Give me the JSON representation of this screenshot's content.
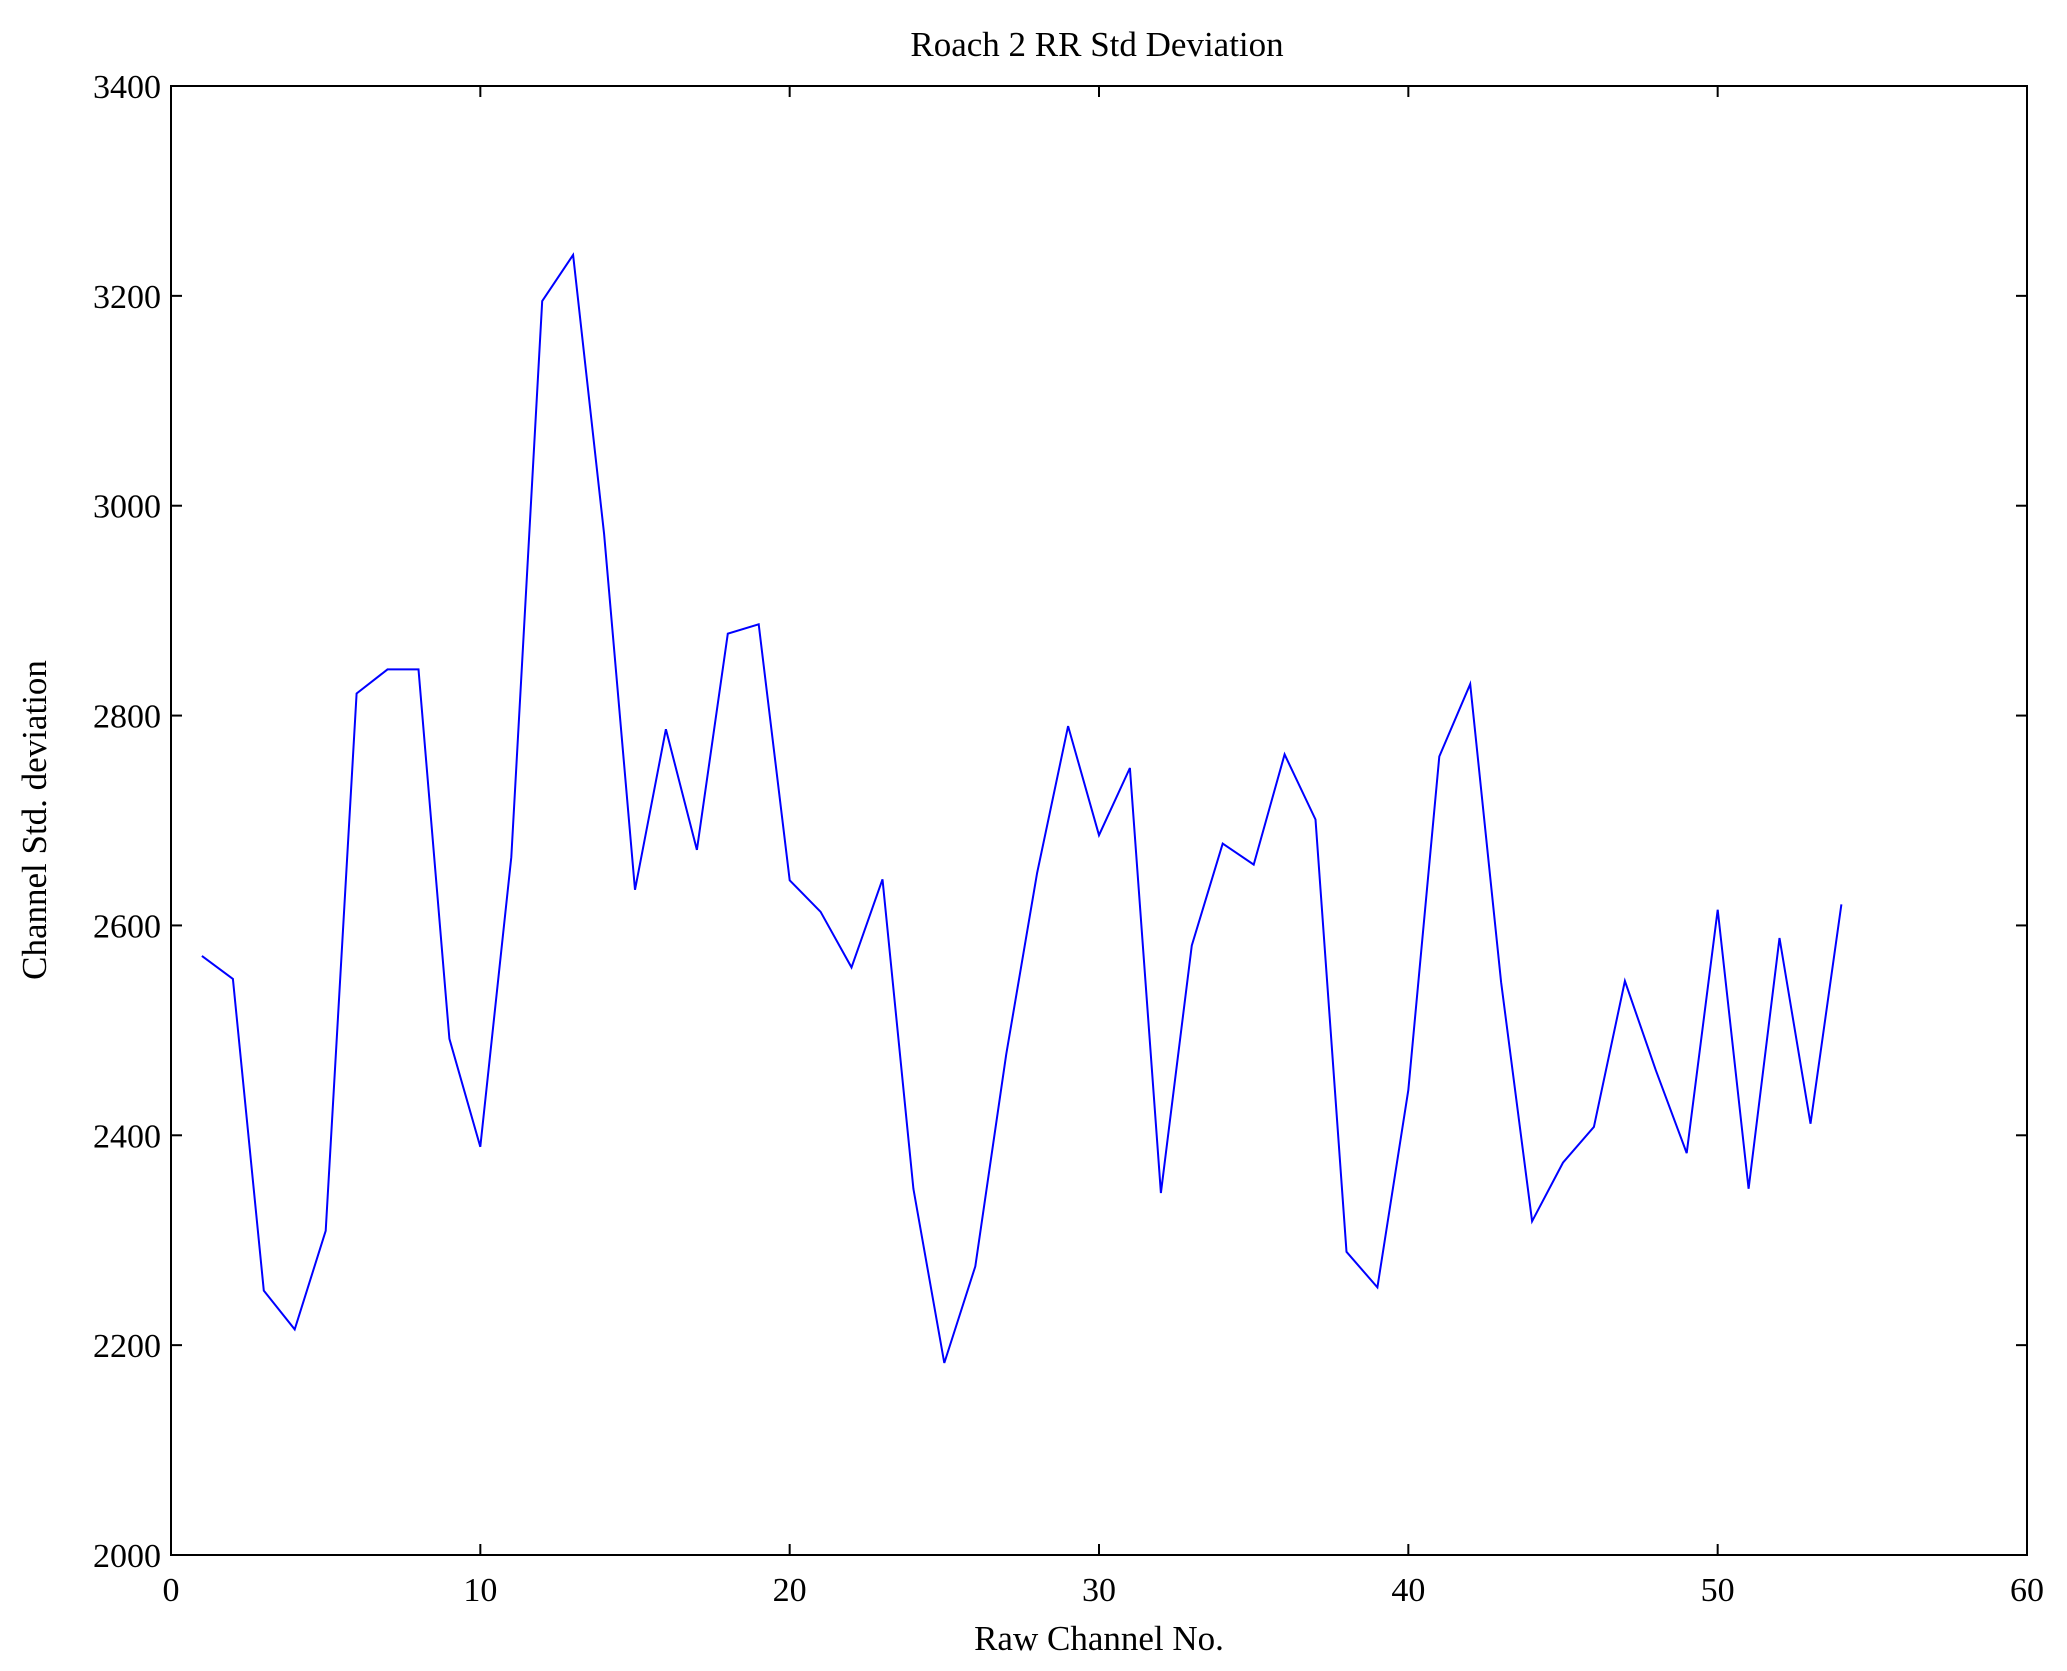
{
  "chart_data": {
    "type": "line",
    "title": "Roach 2 RR Std Deviation",
    "xlabel": "Raw Channel No.",
    "ylabel": "Channel Std. deviation",
    "xlim": [
      0,
      60
    ],
    "ylim": [
      2000,
      3400
    ],
    "xticks": [
      0,
      10,
      20,
      30,
      40,
      50,
      60
    ],
    "yticks": [
      2000,
      2200,
      2400,
      2600,
      2800,
      3000,
      3200,
      3400
    ],
    "grid": false,
    "line_color": "#0000ff",
    "series": [
      {
        "name": "RR Std Deviation",
        "x": [
          1,
          2,
          3,
          4,
          5,
          6,
          7,
          8,
          9,
          10,
          11,
          12,
          13,
          14,
          15,
          16,
          17,
          18,
          19,
          20,
          21,
          22,
          23,
          24,
          25,
          26,
          27,
          28,
          29,
          30,
          31,
          32,
          33,
          34,
          35,
          36,
          37,
          38,
          39,
          40,
          41,
          42,
          43,
          44,
          45,
          46,
          47,
          48,
          49,
          50,
          51,
          52,
          53,
          54
        ],
        "values": [
          2571,
          2549,
          2252,
          2215,
          2309,
          2821,
          2844,
          2844,
          2492,
          2389,
          2665,
          3195,
          3239,
          2973,
          2634,
          2787,
          2672,
          2878,
          2887,
          2643,
          2613,
          2560,
          2644,
          2349,
          2183,
          2275,
          2477,
          2650,
          2790,
          2686,
          2750,
          2345,
          2581,
          2678,
          2658,
          2763,
          2701,
          2289,
          2255,
          2443,
          2761,
          2830,
          2546,
          2318,
          2374,
          2408,
          2547,
          2462,
          2383,
          2615,
          2349,
          2588,
          2411,
          2620
        ]
      }
    ]
  }
}
